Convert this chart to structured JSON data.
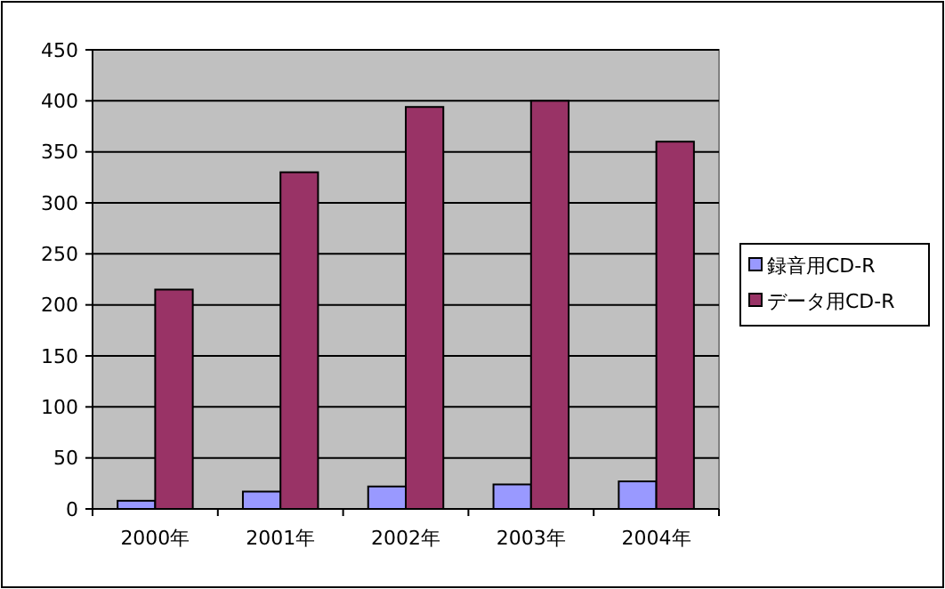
{
  "chart_data": {
    "type": "bar",
    "categories": [
      "2000年",
      "2001年",
      "2002年",
      "2003年",
      "2004年"
    ],
    "series": [
      {
        "name": "録音用CD-R",
        "color": "#9999ff",
        "values": [
          8,
          17,
          22,
          24,
          27
        ]
      },
      {
        "name": "データ用CD-R",
        "color": "#993366",
        "values": [
          215,
          330,
          394,
          400,
          360
        ]
      }
    ],
    "ylim": [
      0,
      450
    ],
    "yticks": [
      0,
      50,
      100,
      150,
      200,
      250,
      300,
      350,
      400,
      450
    ],
    "grid": "y",
    "legend": "right"
  }
}
